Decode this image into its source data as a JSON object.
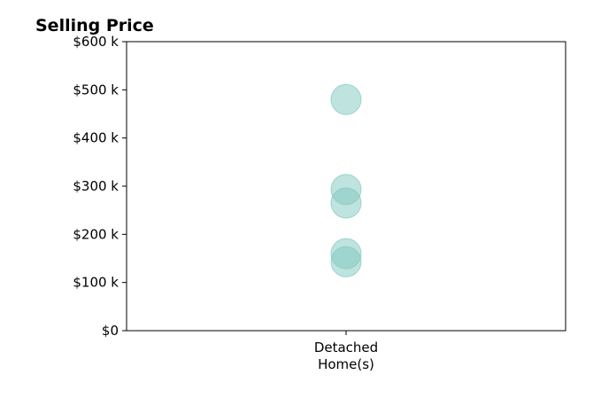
{
  "chart_data": {
    "type": "scatter",
    "title": "Selling Price",
    "xlabel": "",
    "ylabel": "",
    "categories": [
      [
        "Detached",
        "Home(s)"
      ]
    ],
    "y_ticks": [
      "$0",
      "$100 k",
      "$200 k",
      "$300 k",
      "$400 k",
      "$500 k",
      "$600 k"
    ],
    "y_tick_values": [
      0,
      100000,
      200000,
      300000,
      400000,
      500000,
      600000
    ],
    "ylim": [
      0,
      600000
    ],
    "grid": false,
    "legend": "none",
    "series": [
      {
        "category": "Detached Home(s)",
        "values": [
          480000,
          293000,
          265000,
          160000,
          143000
        ]
      }
    ],
    "marker_color": "#7fc8c0"
  }
}
